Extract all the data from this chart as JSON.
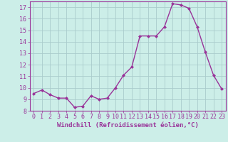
{
  "x": [
    0,
    1,
    2,
    3,
    4,
    5,
    6,
    7,
    8,
    9,
    10,
    11,
    12,
    13,
    14,
    15,
    16,
    17,
    18,
    19,
    20,
    21,
    22,
    23
  ],
  "y": [
    9.5,
    9.8,
    9.4,
    9.1,
    9.1,
    8.3,
    8.4,
    9.3,
    9.0,
    9.1,
    10.0,
    11.1,
    11.8,
    14.5,
    14.5,
    14.5,
    15.3,
    17.3,
    17.2,
    16.9,
    15.3,
    13.1,
    11.1,
    9.9
  ],
  "line_color": "#993399",
  "marker": "D",
  "marker_size": 2.0,
  "bg_color": "#cceee8",
  "grid_color": "#aacccc",
  "xlabel": "Windchill (Refroidissement éolien,°C)",
  "ylim": [
    8,
    17.5
  ],
  "xlim": [
    -0.5,
    23.5
  ],
  "yticks": [
    8,
    9,
    10,
    11,
    12,
    13,
    14,
    15,
    16,
    17
  ],
  "xticks": [
    0,
    1,
    2,
    3,
    4,
    5,
    6,
    7,
    8,
    9,
    10,
    11,
    12,
    13,
    14,
    15,
    16,
    17,
    18,
    19,
    20,
    21,
    22,
    23
  ],
  "tick_color": "#993399",
  "axis_color": "#993399",
  "label_color": "#993399",
  "label_fontsize": 6.5,
  "tick_fontsize": 6.0,
  "linewidth": 1.0
}
